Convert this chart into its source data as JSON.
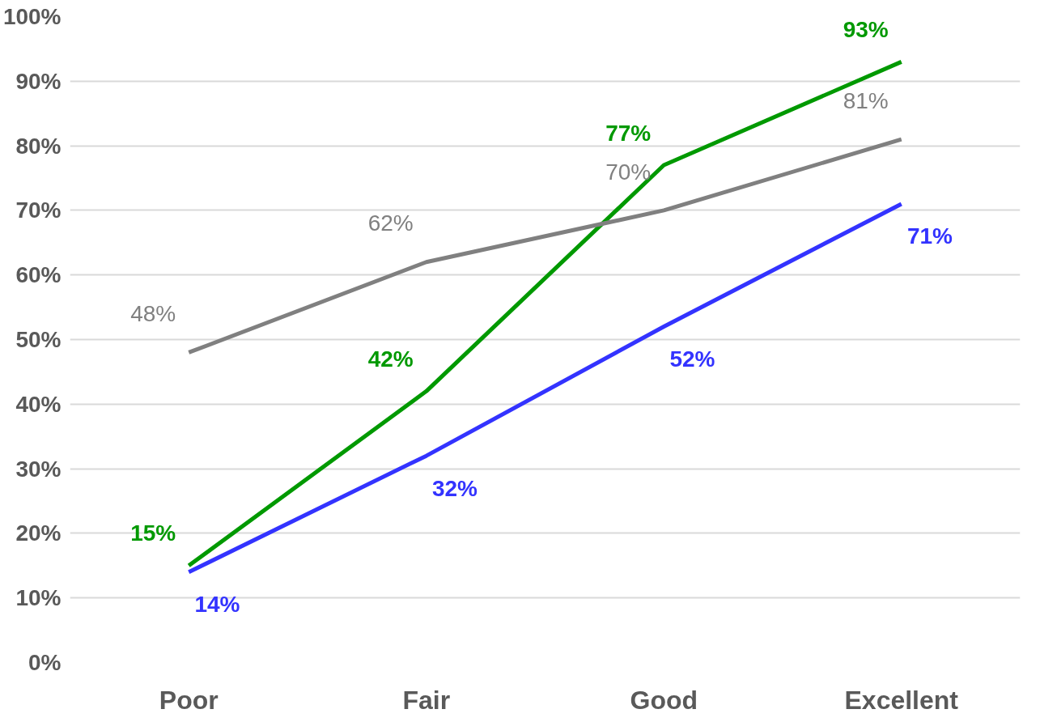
{
  "chart_data": {
    "type": "line",
    "categories": [
      "Poor",
      "Fair",
      "Good",
      "Excellent"
    ],
    "series": [
      {
        "color": "#009900",
        "values": [
          15,
          42,
          77,
          93
        ],
        "value_labels": [
          "15%",
          "42%",
          "77%",
          "93%"
        ]
      },
      {
        "color": "#808080",
        "values": [
          48,
          62,
          70,
          81
        ],
        "value_labels": [
          "48%",
          "62%",
          "70%",
          "81%"
        ]
      },
      {
        "color": "#3333ff",
        "values": [
          14,
          32,
          52,
          71
        ],
        "value_labels": [
          "14%",
          "32%",
          "52%",
          "71%"
        ]
      }
    ],
    "ylim": [
      0,
      100
    ],
    "yticks": [
      {
        "value": 0,
        "label": "0%"
      },
      {
        "value": 10,
        "label": "10%"
      },
      {
        "value": 20,
        "label": "20%"
      },
      {
        "value": 30,
        "label": "30%"
      },
      {
        "value": 40,
        "label": "40%"
      },
      {
        "value": 50,
        "label": "50%"
      },
      {
        "value": 60,
        "label": "60%"
      },
      {
        "value": 70,
        "label": "70%"
      },
      {
        "value": 80,
        "label": "80%"
      },
      {
        "value": 90,
        "label": "90%"
      },
      {
        "value": 100,
        "label": "100%"
      }
    ],
    "grid": "y"
  }
}
